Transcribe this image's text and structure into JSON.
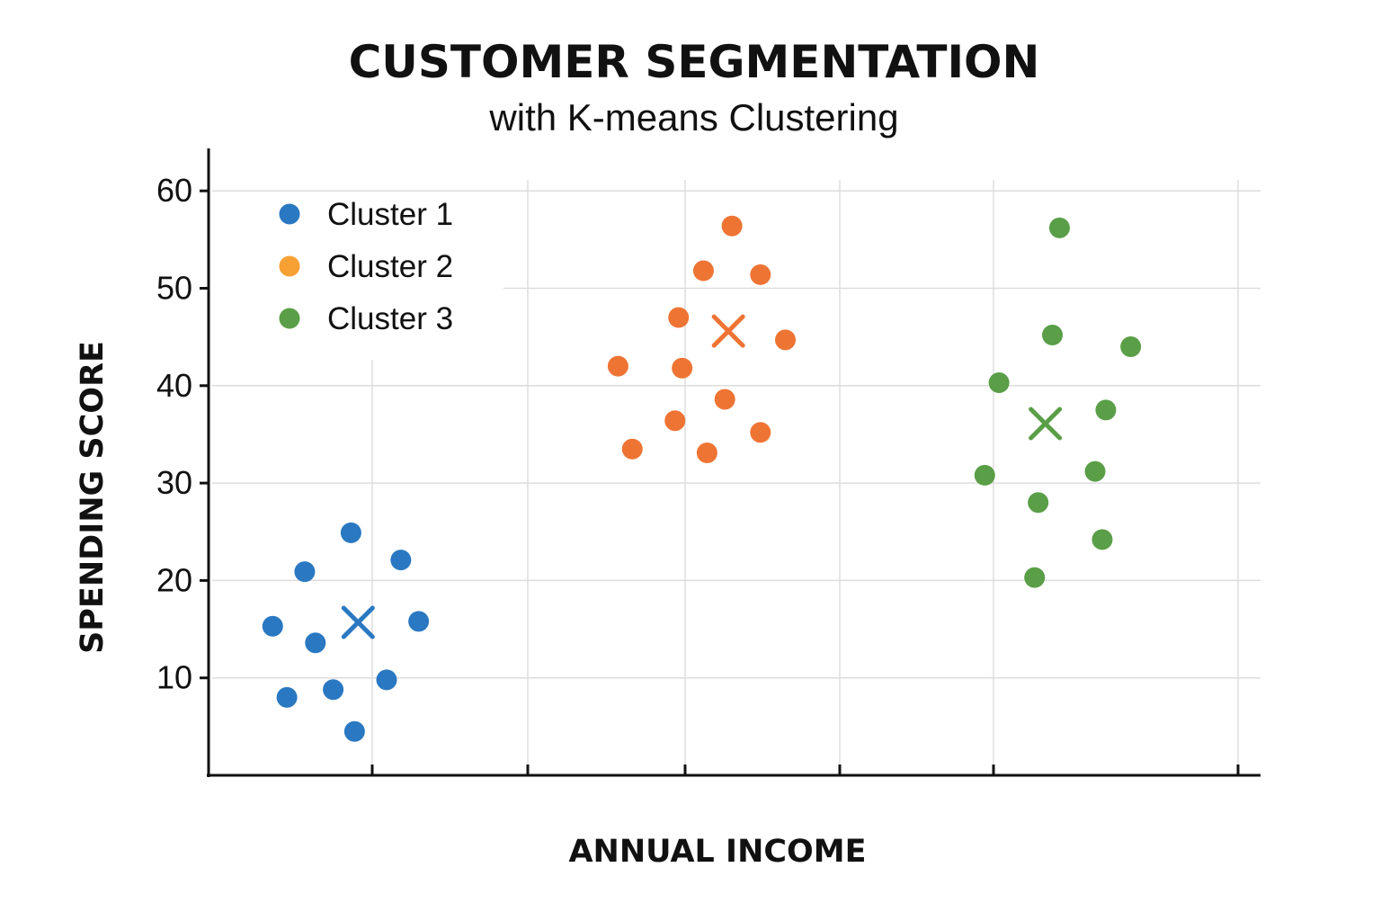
{
  "chart_data": {
    "type": "scatter",
    "title": "CUSTOMER SEGMENTATION",
    "subtitle": "with K-means Clustering",
    "xlabel": "ANNUAL INCOME",
    "ylabel": "SPENDING SCORE",
    "ylim": [
      0,
      64
    ],
    "yticks": [
      10,
      20,
      30,
      40,
      50,
      60
    ],
    "grid": true,
    "legend_position": "top-left",
    "series": [
      {
        "name": "Cluster 1",
        "legend_color": "#2a78c1",
        "color": "#2a78c1",
        "points": [
          {
            "x": 0.9,
            "y": 15.3
          },
          {
            "x": 1.1,
            "y": 8.0
          },
          {
            "x": 1.35,
            "y": 20.9
          },
          {
            "x": 1.5,
            "y": 13.6
          },
          {
            "x": 1.75,
            "y": 8.8
          },
          {
            "x": 2.0,
            "y": 24.9
          },
          {
            "x": 2.05,
            "y": 4.5
          },
          {
            "x": 2.5,
            "y": 9.8
          },
          {
            "x": 2.7,
            "y": 22.1
          },
          {
            "x": 2.95,
            "y": 15.8
          }
        ],
        "centroid": {
          "x": 2.1,
          "y": 15.7
        }
      },
      {
        "name": "Cluster 2",
        "legend_color": "#f7a034",
        "color": "#ee7434",
        "points": [
          {
            "x": 5.75,
            "y": 42.0
          },
          {
            "x": 5.95,
            "y": 33.5
          },
          {
            "x": 6.55,
            "y": 36.4
          },
          {
            "x": 6.6,
            "y": 47.0
          },
          {
            "x": 6.65,
            "y": 41.8
          },
          {
            "x": 6.95,
            "y": 51.8
          },
          {
            "x": 7.0,
            "y": 33.1
          },
          {
            "x": 7.25,
            "y": 38.6
          },
          {
            "x": 7.35,
            "y": 56.4
          },
          {
            "x": 7.75,
            "y": 51.4
          },
          {
            "x": 7.75,
            "y": 35.2
          },
          {
            "x": 8.1,
            "y": 44.7
          }
        ],
        "centroid": {
          "x": 7.3,
          "y": 45.6
        }
      },
      {
        "name": "Cluster 3",
        "legend_color": "#5a9e47",
        "color": "#5a9e47",
        "points": [
          {
            "x": 10.9,
            "y": 30.8
          },
          {
            "x": 11.1,
            "y": 40.3
          },
          {
            "x": 11.6,
            "y": 20.3
          },
          {
            "x": 11.65,
            "y": 28.0
          },
          {
            "x": 11.85,
            "y": 45.2
          },
          {
            "x": 11.95,
            "y": 56.2
          },
          {
            "x": 12.45,
            "y": 31.2
          },
          {
            "x": 12.55,
            "y": 24.2
          },
          {
            "x": 12.6,
            "y": 37.5
          },
          {
            "x": 12.95,
            "y": 44.0
          }
        ],
        "centroid": {
          "x": 11.75,
          "y": 36.1
        }
      }
    ]
  }
}
